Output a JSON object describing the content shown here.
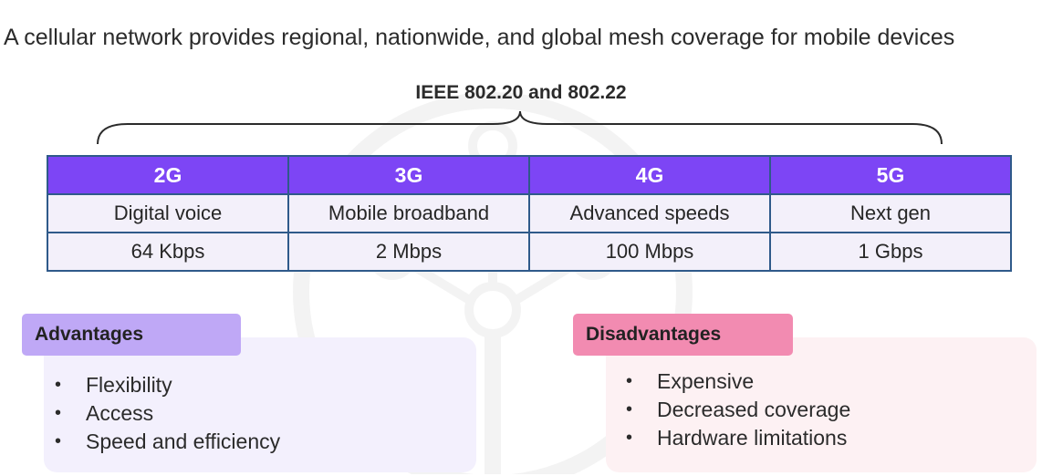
{
  "title": "A cellular network provides regional, nationwide, and global mesh coverage for mobile devices",
  "standards_label": "IEEE 802.20 and 802.22",
  "generations": [
    {
      "name": "2G",
      "feature": "Digital voice",
      "speed": "64 Kbps"
    },
    {
      "name": "3G",
      "feature": "Mobile broadband",
      "speed": "2 Mbps"
    },
    {
      "name": "4G",
      "feature": "Advanced speeds",
      "speed": "100 Mbps"
    },
    {
      "name": "5G",
      "feature": "Next gen",
      "speed": "1 Gbps"
    }
  ],
  "advantages": {
    "heading": "Advantages",
    "items": [
      "Flexibility",
      "Access",
      "Speed and efficiency"
    ]
  },
  "disadvantages": {
    "heading": "Disadvantages",
    "items": [
      "Expensive",
      "Decreased coverage",
      "Hardware limitations"
    ]
  },
  "colors": {
    "header_fill": "#7d45f5",
    "cell_fill": "#f3f0fa",
    "table_border": "#2f5a8a",
    "advantages_tag": "#bfa8f6",
    "advantages_panel": "#f3f0fd",
    "disadvantages_tag": "#f28bb1",
    "disadvantages_panel": "#fdf1f3"
  }
}
